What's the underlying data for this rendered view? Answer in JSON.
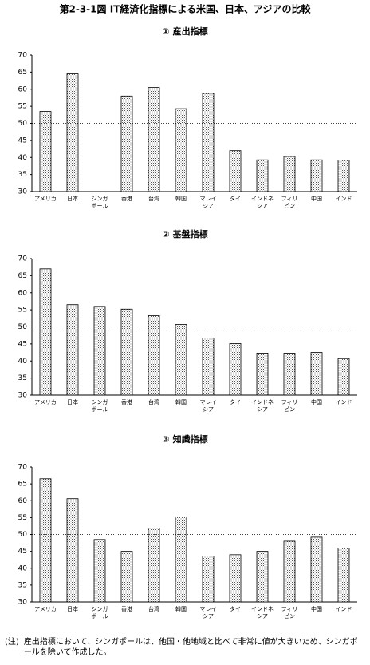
{
  "title": "第2-3-1図  IT経済化指標による米国、日本、アジアの比較",
  "note_label": "(注)",
  "note": "産出指標において、シンガポールは、他国・他地域と比べて非常に値が大きいため、シンガポールを除いて作成した。",
  "chart_data": [
    {
      "type": "bar",
      "title": "① 産出指標",
      "categories": [
        "アメリカ",
        "日本",
        "シンガ\nポール",
        "香港",
        "台湾",
        "韓国",
        "マレイ\nシア",
        "タイ",
        "インドネ\nシア",
        "フィリ\nピン",
        "中国",
        "インド"
      ],
      "values": [
        53.5,
        64.5,
        null,
        58,
        60.5,
        54.3,
        58.8,
        42,
        39.3,
        40.3,
        39.3,
        39.2
      ],
      "ylim": [
        30,
        70
      ],
      "yticks": [
        30,
        35,
        40,
        45,
        50,
        55,
        60,
        65,
        70
      ],
      "reference_line": 50,
      "color": "#000000"
    },
    {
      "type": "bar",
      "title": "② 基盤指標",
      "categories": [
        "アメリカ",
        "日本",
        "シンガ\nポール",
        "香港",
        "台湾",
        "韓国",
        "マレイ\nシア",
        "タイ",
        "インドネ\nシア",
        "フィリ\nピン",
        "中国",
        "インド"
      ],
      "values": [
        67,
        56.5,
        56,
        55.2,
        53.3,
        50.7,
        46.7,
        45.1,
        42.3,
        42.3,
        42.5,
        40.7
      ],
      "ylim": [
        30,
        70
      ],
      "yticks": [
        30,
        35,
        40,
        45,
        50,
        55,
        60,
        65,
        70
      ],
      "reference_line": 50,
      "color": "#000000"
    },
    {
      "type": "bar",
      "title": "③ 知識指標",
      "categories": [
        "アメリカ",
        "日本",
        "シンガ\nポール",
        "香港",
        "台湾",
        "韓国",
        "マレイ\nシア",
        "タイ",
        "インドネ\nシア",
        "フィリ\nピン",
        "中国",
        "インド"
      ],
      "values": [
        66.5,
        60.6,
        48.5,
        45,
        51.9,
        55.2,
        43.6,
        44,
        45,
        48,
        49.2,
        46
      ],
      "ylim": [
        30,
        70
      ],
      "yticks": [
        30,
        35,
        40,
        45,
        50,
        55,
        60,
        65,
        70
      ],
      "reference_line": 50,
      "color": "#000000"
    }
  ]
}
